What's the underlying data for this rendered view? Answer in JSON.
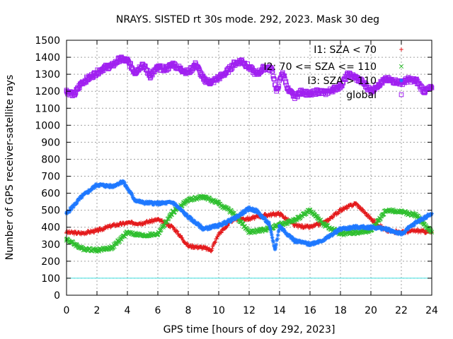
{
  "chart_data": {
    "type": "scatter",
    "title": "NRAYS. SISTED rt 30s mode. 292, 2023. Mask 30 deg",
    "xlabel": "GPS time [hours of doy 292, 2023]",
    "ylabel": "Number of GPS receiver-satellite rays",
    "xlim": [
      0,
      24
    ],
    "ylim": [
      0,
      1500
    ],
    "xticks": [
      "0",
      "2",
      "4",
      "6",
      "8",
      "10",
      "12",
      "14",
      "16",
      "18",
      "20",
      "22",
      "24"
    ],
    "yticks": [
      "0",
      "100",
      "200",
      "300",
      "400",
      "500",
      "600",
      "700",
      "800",
      "900",
      "1000",
      "1100",
      "1200",
      "1300",
      "1400",
      "1500"
    ],
    "grid": true,
    "legend_position": "top-right",
    "threshold": {
      "value": 100,
      "color": "#40e0e0"
    },
    "series": [
      {
        "name": "I1: SZA < 70",
        "marker": "+",
        "color": "#e41a1c",
        "x": [
          0,
          1,
          2,
          3,
          4,
          5,
          6,
          7,
          8,
          9,
          9.5,
          10,
          11,
          12,
          13,
          14,
          15,
          16,
          17,
          18,
          19,
          20,
          21,
          22,
          23,
          24
        ],
        "y": [
          370,
          365,
          380,
          410,
          425,
          425,
          445,
          400,
          290,
          280,
          265,
          360,
          450,
          450,
          470,
          480,
          410,
          400,
          430,
          500,
          540,
          450,
          380,
          370,
          380,
          370
        ]
      },
      {
        "name": "I2: 70 <= SZA <= 110",
        "marker": "x",
        "color": "#2fbf2f",
        "x": [
          0,
          1,
          2,
          3,
          4,
          5,
          6,
          7,
          8,
          9,
          10,
          11,
          12,
          13,
          14,
          15,
          16,
          17,
          18,
          19,
          20,
          21,
          22,
          23,
          24
        ],
        "y": [
          330,
          275,
          265,
          280,
          370,
          350,
          360,
          490,
          560,
          580,
          540,
          480,
          370,
          385,
          415,
          440,
          500,
          410,
          360,
          370,
          380,
          500,
          490,
          470,
          370
        ]
      },
      {
        "name": "I3: SZA > 110",
        "marker": "*",
        "color": "#1e78ff",
        "x": [
          0,
          1,
          2,
          3,
          3.7,
          4.5,
          5,
          6,
          7,
          8,
          9,
          10,
          11,
          12,
          12.5,
          13.3,
          13.7,
          14,
          15,
          16,
          17,
          18,
          19,
          20,
          21,
          22,
          23,
          24
        ],
        "y": [
          480,
          580,
          650,
          640,
          670,
          560,
          545,
          540,
          545,
          460,
          390,
          410,
          450,
          510,
          495,
          420,
          270,
          405,
          320,
          300,
          330,
          390,
          400,
          400,
          390,
          360,
          430,
          480
        ]
      },
      {
        "name": "global",
        "marker": "square",
        "color": "#a020f0",
        "x": [
          0,
          0.5,
          1,
          1.5,
          2,
          2.5,
          3,
          3.5,
          4,
          4.5,
          5,
          5.5,
          6,
          6.5,
          7,
          7.5,
          8,
          8.5,
          9,
          9.5,
          10,
          10.5,
          11,
          11.5,
          12,
          12.5,
          13,
          13.5,
          13.8,
          14.2,
          14.6,
          15,
          15.5,
          16,
          16.5,
          17,
          17.5,
          18,
          18.5,
          19,
          19.5,
          20,
          20.5,
          21,
          21.5,
          22,
          22.5,
          23,
          23.5,
          24
        ],
        "y": [
          1200,
          1180,
          1250,
          1280,
          1310,
          1340,
          1350,
          1390,
          1380,
          1310,
          1360,
          1290,
          1340,
          1330,
          1360,
          1330,
          1310,
          1360,
          1270,
          1250,
          1280,
          1310,
          1360,
          1380,
          1340,
          1300,
          1340,
          1330,
          1200,
          1310,
          1200,
          1170,
          1200,
          1180,
          1200,
          1190,
          1210,
          1230,
          1300,
          1280,
          1250,
          1200,
          1240,
          1270,
          1260,
          1250,
          1270,
          1260,
          1200,
          1220
        ]
      }
    ]
  }
}
